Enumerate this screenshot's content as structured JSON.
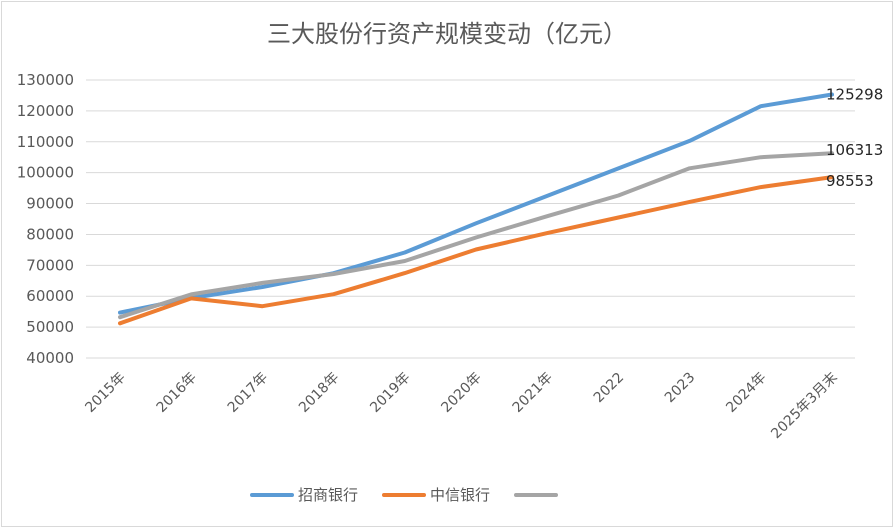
{
  "chart_data": {
    "type": "line",
    "title": "三大股份行资产规模变动（亿元）",
    "categories": [
      "2015年",
      "2016年",
      "2017年",
      "2018年",
      "2019年",
      "2020年",
      "2021年",
      "2022",
      "2023",
      "2024年",
      "2025年3月末"
    ],
    "ylim": [
      40000,
      130000
    ],
    "yticks": [
      40000,
      50000,
      60000,
      70000,
      80000,
      90000,
      100000,
      110000,
      120000,
      130000
    ],
    "grid": true,
    "legend_position": "bottom",
    "series": [
      {
        "name": "招商银行",
        "color": "#5b9bd5",
        "values": [
          54700,
          59400,
          62980,
          67460,
          74170,
          83620,
          92490,
          101390,
          110280,
          121520,
          125298
        ],
        "end_label": "125298"
      },
      {
        "name": "中信银行",
        "color": "#ed7d31",
        "values": [
          51220,
          59310,
          56770,
          60670,
          67500,
          75110,
          80430,
          85480,
          90530,
          95330,
          98553
        ],
        "end_label": "98553"
      },
      {
        "name": "",
        "color": "#a5a5a5",
        "values": [
          53200,
          60600,
          64300,
          67200,
          71400,
          79000,
          85900,
          92600,
          101400,
          105000,
          106313
        ],
        "end_label": "106313"
      }
    ]
  }
}
